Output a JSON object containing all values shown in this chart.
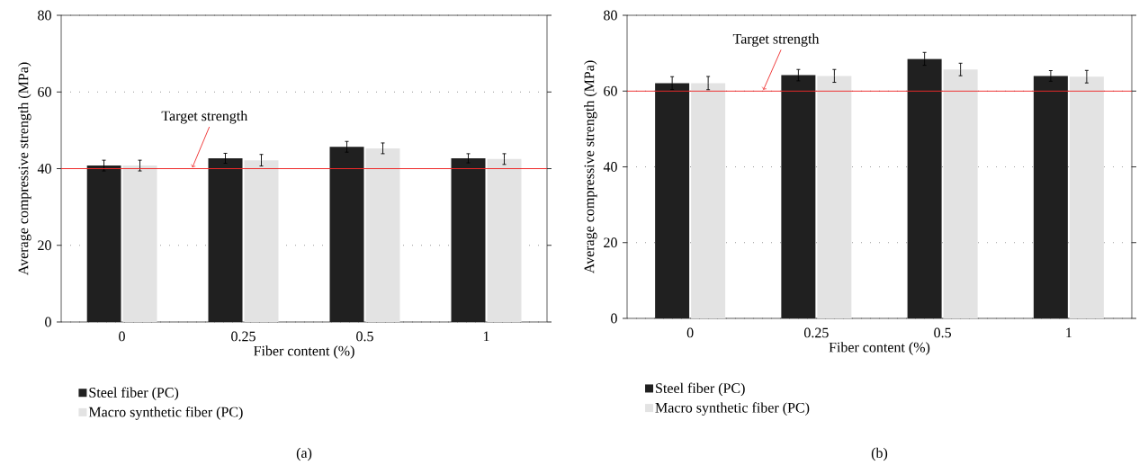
{
  "chart_data": [
    {
      "type": "bar",
      "categories": [
        "0",
        "0.25",
        "0.5",
        "1"
      ],
      "xlabel": "Fiber content (%)",
      "ylabel": "Average compressive strength (MPa)",
      "ylim": [
        0,
        80
      ],
      "yticks": [
        0,
        20,
        40,
        60,
        80
      ],
      "grid": "y",
      "legend": "bottom left",
      "series": [
        {
          "name": "Steel fiber (PC)",
          "color": "#202020",
          "values": [
            40.8,
            42.7,
            45.7,
            42.7
          ],
          "errors": [
            1.4,
            1.3,
            1.4,
            1.2
          ]
        },
        {
          "name": "Macro synthetic fiber (PC)",
          "color": "#e3e3e3",
          "values": [
            40.8,
            42.2,
            45.3,
            42.5
          ],
          "errors": [
            1.4,
            1.5,
            1.4,
            1.4
          ]
        }
      ],
      "ref_lines": [
        {
          "axis": "y",
          "value": 40,
          "label": "Target strength",
          "color": "#ee2a2a"
        }
      ],
      "annotations": [
        "(a)"
      ]
    },
    {
      "type": "bar",
      "categories": [
        "0",
        "0.25",
        "0.5",
        "1"
      ],
      "xlabel": "Fiber content (%)",
      "ylabel": "Average compressive strength (MPa)",
      "ylim": [
        0,
        80
      ],
      "yticks": [
        0,
        20,
        40,
        60,
        80
      ],
      "grid": "y",
      "legend": "bottom left",
      "series": [
        {
          "name": "Steel fiber (PC)",
          "color": "#202020",
          "values": [
            62.1,
            64.2,
            68.5,
            64.0
          ],
          "errors": [
            1.7,
            1.5,
            1.7,
            1.4
          ]
        },
        {
          "name": "Macro synthetic fiber (PC)",
          "color": "#e3e3e3",
          "values": [
            62.1,
            64.0,
            65.7,
            63.8
          ],
          "errors": [
            1.75,
            1.7,
            1.65,
            1.65
          ]
        }
      ],
      "ref_lines": [
        {
          "axis": "y",
          "value": 60,
          "label": "Target strength",
          "color": "#ee2a2a"
        }
      ],
      "annotations": [
        "(b)"
      ]
    }
  ]
}
